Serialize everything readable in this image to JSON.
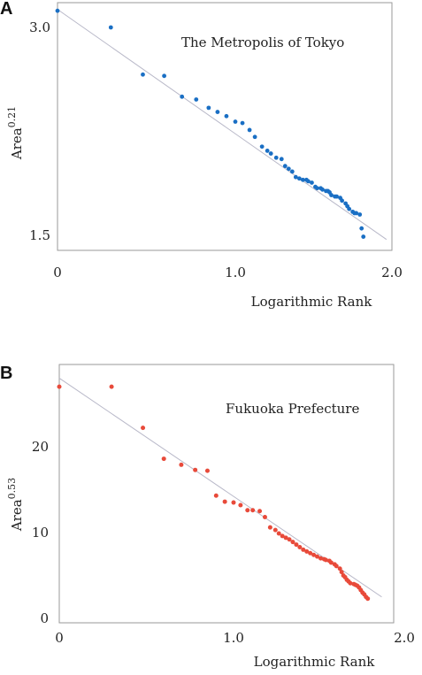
{
  "chart_data": [
    {
      "panel": "A",
      "type": "scatter",
      "title": "The Metropolis of Tokyo",
      "xlabel": "Logarithmic Rank",
      "ylabel": "Area",
      "ylabel_exponent": "0.21",
      "xlim": [
        0,
        2.0
      ],
      "ylim": [
        1.4,
        3.1
      ],
      "xticks": [
        0,
        1.0,
        2.0
      ],
      "xtick_labels": [
        "0",
        "1.0",
        "2.0"
      ],
      "yticks": [
        1.5,
        3.0
      ],
      "ytick_labels": [
        "1.5",
        "3.0"
      ],
      "grid": false,
      "color": "#1a6fc4",
      "fit_line": {
        "x": [
          0.0,
          1.85
        ],
        "y": [
          3.13,
          1.47
        ]
      },
      "points": {
        "x": [
          0.0,
          0.3,
          0.48,
          0.6,
          0.7,
          0.78,
          0.85,
          0.9,
          0.95,
          1.0,
          1.04,
          1.08,
          1.11,
          1.15,
          1.18,
          1.2,
          1.23,
          1.26,
          1.28,
          1.3,
          1.32,
          1.34,
          1.36,
          1.38,
          1.4,
          1.41,
          1.43,
          1.45,
          1.46,
          1.48,
          1.49,
          1.51,
          1.52,
          1.53,
          1.54,
          1.56,
          1.57,
          1.59,
          1.6,
          1.62,
          1.63,
          1.64,
          1.66,
          1.67,
          1.68,
          1.7,
          1.71,
          1.72
        ],
        "y": [
          3.12,
          3.0,
          2.66,
          2.65,
          2.5,
          2.48,
          2.42,
          2.39,
          2.36,
          2.32,
          2.31,
          2.26,
          2.21,
          2.14,
          2.11,
          2.09,
          2.06,
          2.05,
          2.0,
          1.98,
          1.96,
          1.92,
          1.91,
          1.9,
          1.9,
          1.89,
          1.88,
          1.85,
          1.84,
          1.84,
          1.83,
          1.82,
          1.82,
          1.81,
          1.79,
          1.78,
          1.78,
          1.77,
          1.75,
          1.73,
          1.71,
          1.69,
          1.67,
          1.66,
          1.66,
          1.65,
          1.55,
          1.49
        ]
      }
    },
    {
      "panel": "B",
      "type": "scatter",
      "title": "Fukuoka Prefecture",
      "xlabel": "Logarithmic Rank",
      "ylabel": "Area",
      "ylabel_exponent": "0.53",
      "xlim": [
        0,
        2.0
      ],
      "ylim": [
        0,
        28
      ],
      "xticks": [
        0,
        1.0,
        2.0
      ],
      "xtick_labels": [
        "0",
        "1.0",
        "2.0"
      ],
      "yticks": [
        0,
        10,
        20
      ],
      "ytick_labels": [
        "0",
        "10",
        "20"
      ],
      "grid": false,
      "color": "#e84a3a",
      "fit_line": {
        "x": [
          0.0,
          1.85
        ],
        "y": [
          28.0,
          2.5
        ]
      },
      "points": {
        "x": [
          0.0,
          0.3,
          0.48,
          0.6,
          0.7,
          0.78,
          0.85,
          0.9,
          0.95,
          1.0,
          1.04,
          1.08,
          1.11,
          1.15,
          1.18,
          1.21,
          1.24,
          1.26,
          1.28,
          1.3,
          1.32,
          1.34,
          1.36,
          1.38,
          1.4,
          1.42,
          1.44,
          1.46,
          1.48,
          1.5,
          1.52,
          1.53,
          1.55,
          1.56,
          1.58,
          1.59,
          1.61,
          1.62,
          1.63,
          1.64,
          1.65,
          1.66,
          1.67,
          1.69,
          1.7,
          1.71,
          1.72,
          1.73,
          1.74,
          1.75,
          1.76,
          1.77
        ],
        "y": [
          27.0,
          27.0,
          22.2,
          18.6,
          17.9,
          17.3,
          17.2,
          14.3,
          13.6,
          13.5,
          13.2,
          12.6,
          12.6,
          12.5,
          11.8,
          10.6,
          10.3,
          9.9,
          9.6,
          9.4,
          9.2,
          8.9,
          8.6,
          8.3,
          8.0,
          7.8,
          7.6,
          7.4,
          7.2,
          7.0,
          6.9,
          6.8,
          6.7,
          6.5,
          6.3,
          6.1,
          5.8,
          5.4,
          5.0,
          4.8,
          4.5,
          4.3,
          4.1,
          4.0,
          3.9,
          3.8,
          3.6,
          3.3,
          3.0,
          2.8,
          2.5,
          2.3
        ]
      }
    }
  ]
}
